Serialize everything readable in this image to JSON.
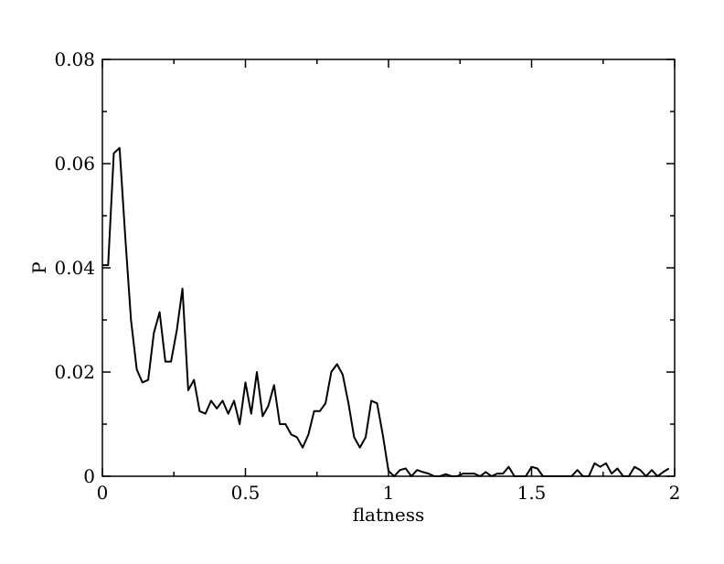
{
  "chart_data": {
    "type": "line",
    "title": "",
    "xlabel": "flatness",
    "ylabel": "P",
    "xlim": [
      0,
      2
    ],
    "ylim": [
      0,
      0.08
    ],
    "grid": false,
    "legend": "none",
    "x_ticks": [
      0,
      0.5,
      1,
      1.5,
      2
    ],
    "x_tick_labels": [
      "0",
      "0.5",
      "1",
      "1.5",
      "2"
    ],
    "y_ticks": [
      0,
      0.02,
      0.04,
      0.06,
      0.08
    ],
    "y_tick_labels": [
      "0",
      "0.02",
      "0.04",
      "0.06",
      "0.08"
    ],
    "line_color": "#000000",
    "series": [
      {
        "x": [
          0.0,
          0.02,
          0.04,
          0.06,
          0.08,
          0.1,
          0.12,
          0.14,
          0.16,
          0.18,
          0.2,
          0.22,
          0.24,
          0.26,
          0.28,
          0.3,
          0.32,
          0.34,
          0.36,
          0.38,
          0.4,
          0.42,
          0.44,
          0.46,
          0.48,
          0.5,
          0.52,
          0.54,
          0.56,
          0.58,
          0.6,
          0.62,
          0.64,
          0.66,
          0.68,
          0.7,
          0.72,
          0.74,
          0.76,
          0.78,
          0.8,
          0.82,
          0.84,
          0.86,
          0.88,
          0.9,
          0.92,
          0.94,
          0.96,
          0.98,
          1.0,
          1.02,
          1.04,
          1.06,
          1.08,
          1.1,
          1.12,
          1.14,
          1.16,
          1.18,
          1.2,
          1.22,
          1.24,
          1.26,
          1.28,
          1.3,
          1.32,
          1.34,
          1.36,
          1.38,
          1.4,
          1.42,
          1.44,
          1.46,
          1.48,
          1.5,
          1.52,
          1.54,
          1.56,
          1.58,
          1.6,
          1.62,
          1.64,
          1.66,
          1.68,
          1.7,
          1.72,
          1.74,
          1.76,
          1.78,
          1.8,
          1.82,
          1.84,
          1.86,
          1.88,
          1.9,
          1.92,
          1.94,
          1.96,
          1.98
        ],
        "y": [
          0.0405,
          0.0405,
          0.062,
          0.063,
          0.046,
          0.03,
          0.0205,
          0.018,
          0.0185,
          0.0275,
          0.0315,
          0.022,
          0.022,
          0.028,
          0.036,
          0.0165,
          0.0185,
          0.0125,
          0.012,
          0.0145,
          0.013,
          0.0145,
          0.012,
          0.0145,
          0.01,
          0.018,
          0.012,
          0.02,
          0.0115,
          0.0135,
          0.0175,
          0.01,
          0.01,
          0.008,
          0.0075,
          0.0055,
          0.008,
          0.0125,
          0.0125,
          0.014,
          0.02,
          0.0215,
          0.0195,
          0.014,
          0.0075,
          0.0055,
          0.0075,
          0.0145,
          0.014,
          0.008,
          0.001,
          0.0,
          0.0012,
          0.0015,
          0.0,
          0.0012,
          0.0008,
          0.0005,
          0.0,
          0.0,
          0.0004,
          0.0,
          0.0,
          0.0005,
          0.0005,
          0.0005,
          0.0,
          0.0008,
          0.0,
          0.0005,
          0.0005,
          0.0018,
          0.0,
          0.0,
          0.0,
          0.0018,
          0.0015,
          0.0,
          0.0,
          0.0,
          0.0,
          0.0,
          0.0,
          0.0012,
          0.0,
          0.0,
          0.0025,
          0.0018,
          0.0025,
          0.0005,
          0.0015,
          0.0,
          0.0,
          0.0018,
          0.0012,
          0.0,
          0.0012,
          0.0,
          0.0008,
          0.0015
        ]
      }
    ]
  }
}
